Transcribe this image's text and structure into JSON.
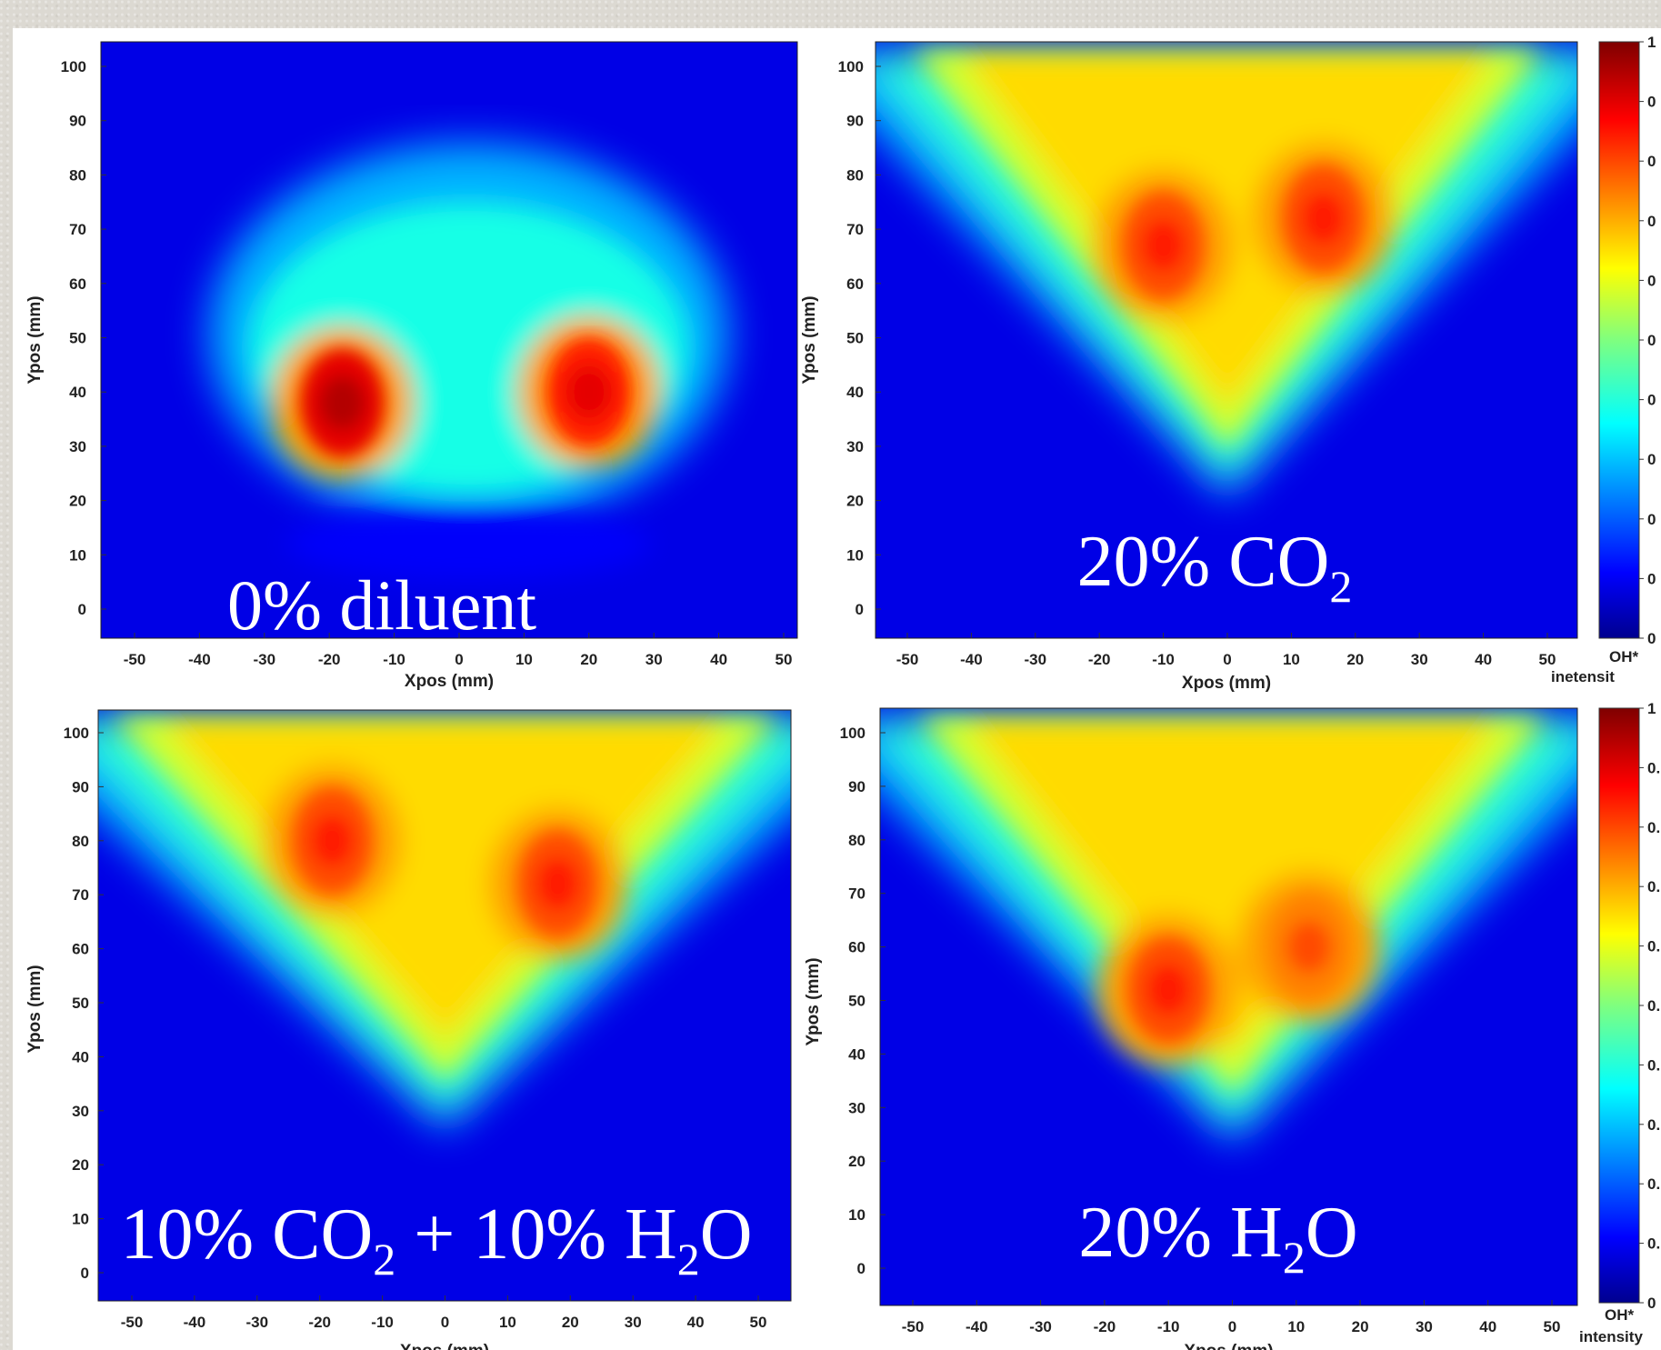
{
  "colors": {
    "background_page": "#dcd9d2",
    "panel_background": "#ffffff",
    "colormap": "jet",
    "annotation_text": "#ffffff"
  },
  "chart_data": [
    {
      "type": "heatmap",
      "panel": "top-left",
      "annotation": {
        "text": "0% diluent",
        "sub": "",
        "rest": ""
      },
      "xlabel": "Xpos (mm)",
      "ylabel": "Ypos (mm)",
      "xticks": [
        "-50",
        "-40",
        "-30",
        "-20",
        "-10",
        "0",
        "10",
        "20",
        "30",
        "40",
        "50"
      ],
      "yticks": [
        "0",
        "10",
        "20",
        "30",
        "40",
        "50",
        "60",
        "70",
        "80",
        "90",
        "100"
      ],
      "xlim": [
        -55,
        52
      ],
      "ylim": [
        -5,
        105
      ],
      "zlim": [
        0,
        1
      ],
      "colormap": "jet",
      "features": [
        {
          "kind": "hotspot",
          "x": -18,
          "y": 38,
          "intensity": 0.95
        },
        {
          "kind": "hotspot",
          "x": 20,
          "y": 40,
          "intensity": 0.9
        },
        {
          "kind": "plume_envelope",
          "x_range": [
            -35,
            38
          ],
          "y_range": [
            18,
            85
          ],
          "intensity": 0.35
        }
      ]
    },
    {
      "type": "heatmap",
      "panel": "top-right",
      "annotation": {
        "text": "20% CO",
        "sub": "2",
        "rest": ""
      },
      "xlabel": "Xpos (mm)",
      "ylabel": "Ypos (mm)",
      "xticks": [
        "-50",
        "-40",
        "-30",
        "-20",
        "-10",
        "0",
        "10",
        "20",
        "30",
        "40",
        "50"
      ],
      "yticks": [
        "0",
        "10",
        "20",
        "30",
        "40",
        "50",
        "60",
        "70",
        "80",
        "90",
        "100"
      ],
      "xlim": [
        -55,
        52
      ],
      "ylim": [
        -5,
        105
      ],
      "zlim": [
        0,
        1
      ],
      "colormap": "jet",
      "features": [
        {
          "kind": "hotspot",
          "x": -10,
          "y": 67,
          "intensity": 0.85
        },
        {
          "kind": "hotspot",
          "x": 15,
          "y": 72,
          "intensity": 0.85
        },
        {
          "kind": "v_flame",
          "apex_y": 22,
          "top_width": 60,
          "intensity": 0.5
        }
      ]
    },
    {
      "type": "heatmap",
      "panel": "bottom-left",
      "annotation": {
        "text": "10% CO",
        "sub": "2",
        "rest": " + 10% H",
        "sub2": "2",
        "rest2": "O"
      },
      "xlabel": "Xpos (mm)",
      "ylabel": "Ypos (mm)",
      "xticks": [
        "-50",
        "-40",
        "-30",
        "-20",
        "-10",
        "0",
        "10",
        "20",
        "30",
        "40",
        "50"
      ],
      "yticks": [
        "0",
        "10",
        "20",
        "30",
        "40",
        "50",
        "60",
        "70",
        "80",
        "90",
        "100"
      ],
      "xlim": [
        -55,
        55
      ],
      "ylim": [
        -5,
        105
      ],
      "zlim": [
        0,
        1
      ],
      "colormap": "jet",
      "features": [
        {
          "kind": "hotspot",
          "x": -18,
          "y": 80,
          "intensity": 0.85
        },
        {
          "kind": "hotspot",
          "x": 18,
          "y": 72,
          "intensity": 0.85
        },
        {
          "kind": "v_flame",
          "apex_y": 28,
          "top_width": 65,
          "intensity": 0.55
        }
      ]
    },
    {
      "type": "heatmap",
      "panel": "bottom-right",
      "annotation": {
        "text": "20% H",
        "sub": "2",
        "rest": "O"
      },
      "xlabel": "Xpos (mm)",
      "ylabel": "Ypos (mm)",
      "xticks": [
        "-50",
        "-40",
        "-30",
        "-20",
        "-10",
        "0",
        "10",
        "20",
        "30",
        "40",
        "50"
      ],
      "yticks": [
        "0",
        "10",
        "20",
        "30",
        "40",
        "50",
        "60",
        "70",
        "80",
        "90",
        "100"
      ],
      "xlim": [
        -55,
        52
      ],
      "ylim": [
        -5,
        105
      ],
      "zlim": [
        0,
        1
      ],
      "colormap": "jet",
      "features": [
        {
          "kind": "hotspot",
          "x": -10,
          "y": 52,
          "intensity": 0.85
        },
        {
          "kind": "hotspot",
          "x": 12,
          "y": 60,
          "intensity": 0.8
        },
        {
          "kind": "v_flame",
          "apex_y": 25,
          "top_width": 60,
          "intensity": 0.45
        }
      ]
    }
  ],
  "colorbars": [
    {
      "label_line1": "OH*",
      "label_line2": "inetensit",
      "ticks": [
        "1",
        "0",
        "0",
        "0",
        "0",
        "0",
        "0",
        "0",
        "0",
        "0",
        "0"
      ]
    },
    {
      "label_line1": "OH*",
      "label_line2": "intensity",
      "ticks": [
        "1",
        "0.",
        "0.",
        "0.",
        "0.",
        "0.",
        "0.",
        "0.",
        "0.",
        "0.",
        "0"
      ]
    }
  ]
}
